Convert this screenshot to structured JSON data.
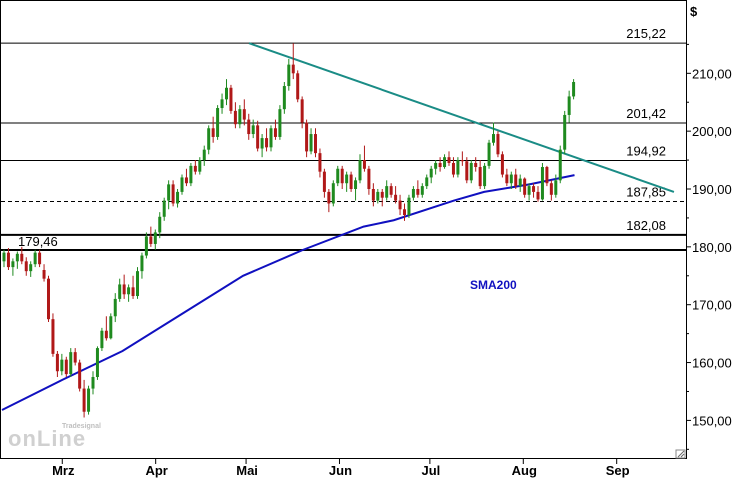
{
  "chart_data": {
    "type": "candlestick",
    "y_unit": "$",
    "ylim": [
      143.5,
      222.5
    ],
    "y_ticks": [
      {
        "value": 150,
        "label": "150,00"
      },
      {
        "value": 160,
        "label": "160,00"
      },
      {
        "value": 170,
        "label": "170,00"
      },
      {
        "value": 180,
        "label": "180,00"
      },
      {
        "value": 190,
        "label": "190,00"
      },
      {
        "value": 200,
        "label": "200,00"
      },
      {
        "value": 210,
        "label": "210,00"
      }
    ],
    "x_ticks": [
      {
        "label": "Mrz",
        "day": 20
      },
      {
        "label": "Apr",
        "day": 51
      },
      {
        "label": "Mai",
        "day": 81
      },
      {
        "label": "Jun",
        "day": 112
      },
      {
        "label": "Jul",
        "day": 142
      },
      {
        "label": "Aug",
        "day": 173
      },
      {
        "label": "Sep",
        "day": 204
      }
    ],
    "horizontal_levels": [
      {
        "value": 215.22,
        "label": "215,22",
        "style": "solid",
        "label_side": "right"
      },
      {
        "value": 201.42,
        "label": "201,42",
        "style": "solid",
        "label_side": "right"
      },
      {
        "value": 194.92,
        "label": "194,92",
        "style": "solid",
        "label_side": "right"
      },
      {
        "value": 187.85,
        "label": "187,85",
        "style": "dashed",
        "label_side": "right"
      },
      {
        "value": 182.08,
        "label": "182,08",
        "style": "solid",
        "label_side": "right",
        "thick": true
      },
      {
        "value": 179.46,
        "label": "179,46",
        "style": "solid",
        "label_side": "left",
        "thick": true
      }
    ],
    "trendline": {
      "color": "#1a8c86",
      "points": [
        [
          82,
          215.2
        ],
        [
          223,
          189.5
        ]
      ]
    },
    "sma": {
      "name": "SMA200",
      "color": "#1010c0",
      "points": [
        [
          0,
          151.8
        ],
        [
          20,
          157.0
        ],
        [
          40,
          162.0
        ],
        [
          60,
          168.5
        ],
        [
          80,
          175.0
        ],
        [
          100,
          179.5
        ],
        [
          120,
          183.5
        ],
        [
          130,
          184.6
        ],
        [
          150,
          188.0
        ],
        [
          160,
          189.5
        ],
        [
          175,
          190.8
        ],
        [
          190,
          192.4
        ]
      ]
    },
    "ohlc": [
      [
        0,
        177.5,
        179.5,
        176.5,
        179.0
      ],
      [
        1,
        179.0,
        179.8,
        176.0,
        176.5
      ],
      [
        2,
        176.5,
        178.0,
        175.0,
        177.5
      ],
      [
        3,
        177.5,
        179.2,
        176.2,
        178.8
      ],
      [
        4,
        178.8,
        180.0,
        177.0,
        177.5
      ],
      [
        5,
        177.5,
        178.2,
        175.0,
        175.8
      ],
      [
        6,
        175.8,
        177.5,
        174.8,
        177.0
      ],
      [
        7,
        177.0,
        179.5,
        176.5,
        179.0
      ],
      [
        8,
        179.0,
        179.5,
        176.5,
        177.0
      ],
      [
        9,
        176.0,
        177.0,
        174.0,
        174.5
      ],
      [
        10,
        174.5,
        175.0,
        167.0,
        167.5
      ],
      [
        11,
        167.5,
        168.5,
        161.0,
        161.5
      ],
      [
        12,
        161.5,
        162.0,
        157.5,
        158.5
      ],
      [
        13,
        158.5,
        161.5,
        157.8,
        160.5
      ],
      [
        14,
        160.5,
        161.0,
        157.5,
        158.0
      ],
      [
        15,
        158.0,
        162.5,
        157.5,
        161.8
      ],
      [
        16,
        161.8,
        162.5,
        159.5,
        160.0
      ],
      [
        17,
        160.0,
        160.5,
        155.0,
        155.5
      ],
      [
        18,
        155.5,
        157.0,
        150.5,
        151.5
      ],
      [
        19,
        151.5,
        156.0,
        151.0,
        155.5
      ],
      [
        20,
        155.5,
        158.5,
        154.5,
        157.5
      ],
      [
        21,
        157.5,
        162.8,
        157.0,
        162.5
      ],
      [
        22,
        162.5,
        166.0,
        162.0,
        165.5
      ],
      [
        23,
        165.5,
        168.0,
        163.8,
        164.2
      ],
      [
        24,
        164.2,
        168.5,
        164.0,
        168.0
      ],
      [
        25,
        168.0,
        172.0,
        167.0,
        171.0
      ],
      [
        26,
        171.0,
        174.5,
        170.5,
        173.5
      ],
      [
        27,
        173.5,
        175.2,
        171.0,
        171.8
      ],
      [
        28,
        171.8,
        173.5,
        170.5,
        173.0
      ],
      [
        29,
        173.0,
        175.0,
        171.0,
        171.5
      ],
      [
        30,
        171.5,
        176.5,
        171.0,
        175.8
      ],
      [
        31,
        175.8,
        179.0,
        174.5,
        178.5
      ],
      [
        32,
        178.5,
        182.5,
        178.0,
        181.8
      ],
      [
        33,
        181.8,
        183.5,
        180.0,
        180.5
      ],
      [
        34,
        180.5,
        183.0,
        179.5,
        182.5
      ],
      [
        35,
        182.5,
        186.0,
        181.5,
        185.2
      ],
      [
        36,
        185.2,
        188.5,
        184.5,
        188.0
      ],
      [
        37,
        188.0,
        191.5,
        186.5,
        190.8
      ],
      [
        38,
        190.8,
        191.5,
        187.0,
        187.5
      ],
      [
        39,
        187.5,
        190.0,
        186.8,
        189.5
      ],
      [
        40,
        189.5,
        192.5,
        189.0,
        192.0
      ],
      [
        41,
        192.0,
        193.5,
        190.5,
        191.0
      ],
      [
        42,
        191.0,
        194.5,
        190.5,
        194.0
      ],
      [
        43,
        194.0,
        195.0,
        192.5,
        193.0
      ],
      [
        44,
        193.0,
        195.5,
        192.5,
        195.0
      ],
      [
        45,
        195.0,
        197.5,
        194.0,
        196.8
      ],
      [
        46,
        196.8,
        201.0,
        196.0,
        200.5
      ],
      [
        47,
        200.5,
        202.5,
        198.0,
        199.0
      ],
      [
        48,
        199.0,
        204.5,
        198.5,
        204.0
      ],
      [
        49,
        204.0,
        206.5,
        203.0,
        205.5
      ],
      [
        50,
        205.5,
        209.0,
        204.5,
        207.5
      ],
      [
        51,
        207.5,
        208.0,
        203.0,
        203.5
      ],
      [
        52,
        203.5,
        205.0,
        200.5,
        201.2
      ],
      [
        53,
        201.2,
        204.5,
        200.5,
        203.8
      ],
      [
        54,
        203.8,
        205.5,
        201.0,
        202.0
      ],
      [
        55,
        202.0,
        203.0,
        198.5,
        199.5
      ],
      [
        56,
        199.5,
        202.0,
        198.8,
        201.0
      ],
      [
        57,
        201.0,
        201.8,
        196.5,
        197.0
      ],
      [
        58,
        197.0,
        199.5,
        195.5,
        198.8
      ],
      [
        59,
        198.8,
        200.5,
        196.5,
        197.2
      ],
      [
        60,
        197.2,
        201.0,
        196.5,
        200.5
      ],
      [
        61,
        200.5,
        202.0,
        198.5,
        199.0
      ],
      [
        62,
        199.0,
        204.5,
        198.5,
        203.8
      ],
      [
        63,
        203.8,
        208.5,
        203.0,
        207.8
      ],
      [
        64,
        207.8,
        212.5,
        207.0,
        211.5
      ],
      [
        65,
        211.5,
        215.2,
        209.0,
        210.0
      ],
      [
        66,
        210.0,
        210.5,
        205.0,
        205.5
      ],
      [
        67,
        205.5,
        206.0,
        200.5,
        201.5
      ],
      [
        68,
        201.5,
        202.0,
        195.5,
        196.5
      ],
      [
        69,
        196.5,
        200.5,
        196.0,
        199.5
      ],
      [
        70,
        199.5,
        200.5,
        195.5,
        196.2
      ],
      [
        71,
        196.2,
        197.0,
        192.0,
        193.0
      ],
      [
        72,
        193.0,
        193.5,
        188.5,
        189.5
      ],
      [
        73,
        189.5,
        190.0,
        186.0,
        187.5
      ],
      [
        74,
        187.5,
        191.5,
        187.0,
        191.0
      ],
      [
        75,
        191.0,
        194.0,
        190.5,
        193.5
      ],
      [
        76,
        193.5,
        194.0,
        190.0,
        191.0
      ],
      [
        77,
        191.0,
        193.0,
        189.5,
        192.5
      ],
      [
        78,
        192.5,
        193.0,
        189.5,
        190.0
      ],
      [
        79,
        190.0,
        192.0,
        188.0,
        191.5
      ],
      [
        80,
        191.5,
        196.0,
        191.0,
        195.0
      ],
      [
        81,
        195.0,
        197.5,
        193.0,
        193.5
      ],
      [
        82,
        193.5,
        194.0,
        189.0,
        190.0
      ],
      [
        83,
        190.0,
        191.0,
        187.0,
        188.0
      ],
      [
        84,
        188.0,
        190.0,
        187.5,
        189.5
      ],
      [
        85,
        189.5,
        190.0,
        187.0,
        188.5
      ],
      [
        86,
        188.5,
        191.5,
        188.0,
        190.5
      ],
      [
        87,
        190.5,
        191.0,
        188.5,
        189.0
      ],
      [
        88,
        189.0,
        190.5,
        187.5,
        188.0
      ],
      [
        89,
        188.0,
        189.0,
        185.5,
        186.5
      ],
      [
        90,
        186.5,
        187.5,
        184.5,
        185.5
      ],
      [
        91,
        185.5,
        189.0,
        185.0,
        188.5
      ],
      [
        92,
        188.5,
        190.5,
        188.0,
        190.0
      ],
      [
        93,
        190.0,
        191.5,
        188.5,
        189.0
      ],
      [
        94,
        189.0,
        191.0,
        188.5,
        190.5
      ],
      [
        95,
        190.5,
        192.5,
        190.0,
        192.0
      ],
      [
        96,
        192.0,
        194.0,
        191.0,
        193.5
      ],
      [
        97,
        193.5,
        195.0,
        192.5,
        194.5
      ],
      [
        98,
        194.5,
        195.5,
        193.0,
        193.8
      ],
      [
        99,
        193.8,
        196.0,
        193.5,
        195.5
      ],
      [
        100,
        195.5,
        196.5,
        194.0,
        194.5
      ],
      [
        101,
        194.5,
        195.5,
        192.0,
        192.5
      ],
      [
        102,
        192.5,
        195.5,
        192.0,
        195.0
      ],
      [
        103,
        195.0,
        196.5,
        194.0,
        194.8
      ],
      [
        104,
        194.8,
        195.5,
        191.0,
        191.5
      ],
      [
        105,
        191.5,
        195.0,
        191.0,
        194.5
      ],
      [
        106,
        194.5,
        195.5,
        193.0,
        193.8
      ],
      [
        107,
        193.8,
        195.0,
        190.0,
        190.5
      ],
      [
        108,
        190.5,
        194.5,
        190.0,
        194.0
      ],
      [
        109,
        194.0,
        198.5,
        193.5,
        198.0
      ],
      [
        110,
        198.0,
        201.5,
        197.5,
        199.5
      ],
      [
        111,
        199.5,
        200.0,
        195.5,
        196.0
      ],
      [
        112,
        196.0,
        196.5,
        192.0,
        192.5
      ],
      [
        113,
        192.5,
        193.5,
        190.5,
        191.0
      ],
      [
        114,
        191.0,
        193.0,
        190.0,
        192.5
      ],
      [
        115,
        192.5,
        193.5,
        190.0,
        190.5
      ],
      [
        116,
        190.5,
        192.5,
        189.5,
        191.8
      ],
      [
        117,
        191.8,
        192.0,
        188.5,
        189.0
      ],
      [
        118,
        189.0,
        191.0,
        188.0,
        190.5
      ],
      [
        119,
        190.5,
        191.0,
        188.5,
        189.5
      ],
      [
        120,
        189.5,
        190.5,
        187.8,
        188.2
      ],
      [
        121,
        188.2,
        194.5,
        188.0,
        193.8
      ],
      [
        122,
        193.8,
        194.0,
        190.5,
        191.0
      ],
      [
        123,
        191.0,
        191.5,
        188.0,
        189.0
      ],
      [
        124,
        189.0,
        192.5,
        188.5,
        191.5
      ],
      [
        125,
        191.5,
        197.5,
        191.0,
        196.8
      ],
      [
        126,
        196.8,
        203.5,
        196.0,
        202.8
      ],
      [
        127,
        202.8,
        207.0,
        201.5,
        206.0
      ],
      [
        128,
        206.0,
        209.0,
        205.5,
        208.5
      ]
    ]
  },
  "watermark": {
    "brand_top": "Tradesignal",
    "brand_main": "onLine"
  }
}
